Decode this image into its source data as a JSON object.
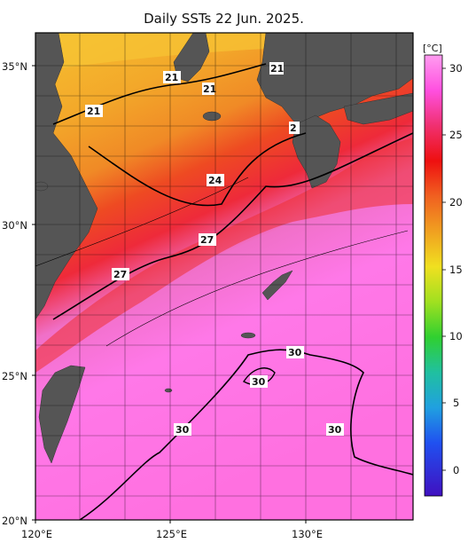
{
  "title": "Daily SSTs 22 Jun. 2025.",
  "map": {
    "lat_labels": [
      {
        "lat": 35,
        "text": "35°N"
      },
      {
        "lat": 30,
        "text": "30°N"
      },
      {
        "lat": 25,
        "text": "25°N"
      },
      {
        "lat": 20,
        "text": "20°N"
      }
    ],
    "lon_labels": [
      {
        "lon": 120,
        "text": "120°E"
      },
      {
        "lon": 125,
        "text": "125°E"
      },
      {
        "lon": 130,
        "text": "130°E"
      }
    ],
    "isotherm_labels": [
      "21",
      "21",
      "21",
      "21",
      "24",
      "2",
      "27",
      "27",
      "30",
      "30",
      "30",
      "30"
    ],
    "land_color": "#555555",
    "ocean_colors": {
      "cool": "#f0a020",
      "warm": "#ee2a20",
      "hot": "#ff66dd"
    }
  },
  "colorbar": {
    "unit": "[°C]",
    "ticks": [
      "30",
      "25",
      "20",
      "15",
      "10",
      "5",
      "0"
    ]
  }
}
